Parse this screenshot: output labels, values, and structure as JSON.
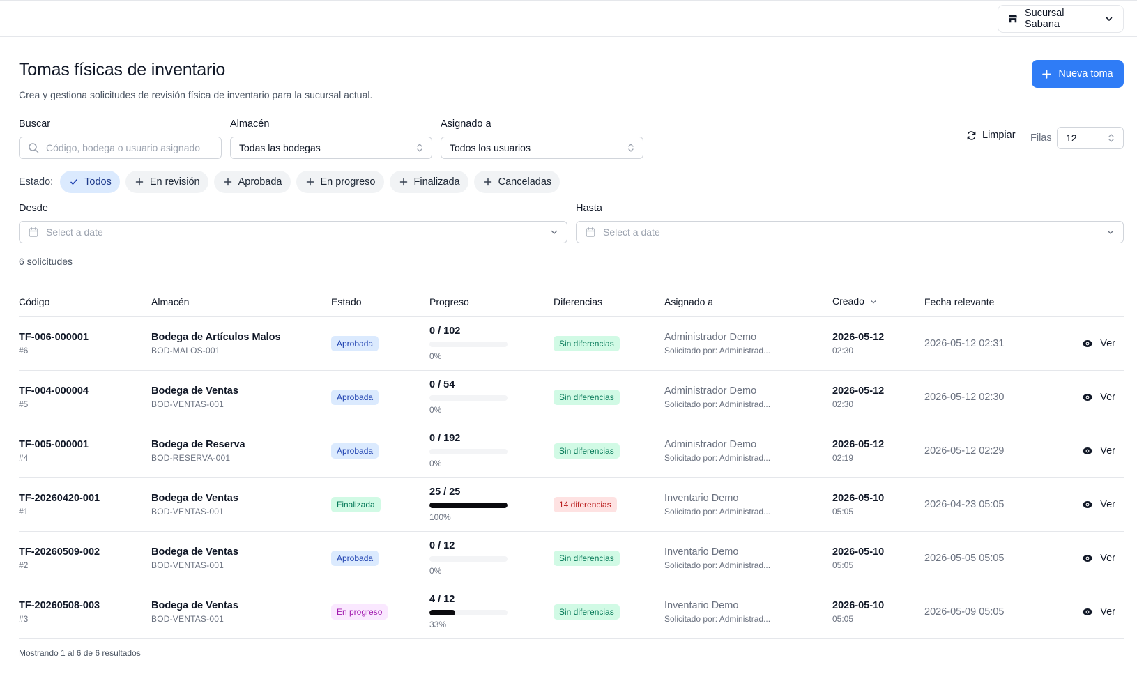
{
  "header": {
    "branch_label": "Sucursal Sabana",
    "branch_icon": "store-icon"
  },
  "page": {
    "title": "Tomas físicas de inventario",
    "subtitle": "Crea y gestiona solicitudes de revisión física de inventario para la sucursal actual.",
    "new_button_label": "Nueva toma"
  },
  "filters": {
    "search": {
      "label": "Buscar",
      "placeholder": "Código, bodega o usuario asignado",
      "value": ""
    },
    "warehouse": {
      "label": "Almacén",
      "value": "Todas las bodegas"
    },
    "assigned": {
      "label": "Asignado a",
      "value": "Todos los usuarios"
    },
    "clear_label": "Limpiar",
    "rows_label": "Filas",
    "rows_value": "12",
    "estado_label": "Estado:",
    "estado_chips": [
      {
        "label": "Todos",
        "active": true
      },
      {
        "label": "En revisión",
        "active": false
      },
      {
        "label": "Aprobada",
        "active": false
      },
      {
        "label": "En progreso",
        "active": false
      },
      {
        "label": "Finalizada",
        "active": false
      },
      {
        "label": "Canceladas",
        "active": false
      }
    ],
    "from": {
      "label": "Desde",
      "placeholder": "Select a date"
    },
    "to": {
      "label": "Hasta",
      "placeholder": "Select a date"
    }
  },
  "results_count": "6 solicitudes",
  "table": {
    "columns": [
      "Código",
      "Almacén",
      "Estado",
      "Progreso",
      "Diferencias",
      "Asignado a",
      "Creado",
      "Fecha relevante"
    ],
    "view_label": "Ver",
    "rows": [
      {
        "code": "TF-006-000001",
        "num": "#6",
        "warehouse": "Bodega de Artículos Malos",
        "wcode": "BOD-MALOS-001",
        "status": "Aprobada",
        "status_kind": "aprobada",
        "progress_text": "0 / 102",
        "progress_fraction": 0,
        "progress_pct": "0%",
        "diff": "Sin diferencias",
        "diff_kind": "sin",
        "assignee": "Administrador Demo",
        "requested_by": "Solicitado por: Administrad...",
        "created_date": "2026-05-12",
        "created_time": "02:30",
        "relevant": "2026-05-12 02:31"
      },
      {
        "code": "TF-004-000004",
        "num": "#5",
        "warehouse": "Bodega de Ventas",
        "wcode": "BOD-VENTAS-001",
        "status": "Aprobada",
        "status_kind": "aprobada",
        "progress_text": "0 / 54",
        "progress_fraction": 0,
        "progress_pct": "0%",
        "diff": "Sin diferencias",
        "diff_kind": "sin",
        "assignee": "Administrador Demo",
        "requested_by": "Solicitado por: Administrad...",
        "created_date": "2026-05-12",
        "created_time": "02:30",
        "relevant": "2026-05-12 02:30"
      },
      {
        "code": "TF-005-000001",
        "num": "#4",
        "warehouse": "Bodega de Reserva",
        "wcode": "BOD-RESERVA-001",
        "status": "Aprobada",
        "status_kind": "aprobada",
        "progress_text": "0 / 192",
        "progress_fraction": 0,
        "progress_pct": "0%",
        "diff": "Sin diferencias",
        "diff_kind": "sin",
        "assignee": "Administrador Demo",
        "requested_by": "Solicitado por: Administrad...",
        "created_date": "2026-05-12",
        "created_time": "02:19",
        "relevant": "2026-05-12 02:29"
      },
      {
        "code": "TF-20260420-001",
        "num": "#1",
        "warehouse": "Bodega de Ventas",
        "wcode": "BOD-VENTAS-001",
        "status": "Finalizada",
        "status_kind": "finalizada",
        "progress_text": "25 / 25",
        "progress_fraction": 1,
        "progress_pct": "100%",
        "diff": "14 diferencias",
        "diff_kind": "dif",
        "assignee": "Inventario Demo",
        "requested_by": "Solicitado por: Administrad...",
        "created_date": "2026-05-10",
        "created_time": "05:05",
        "relevant": "2026-04-23 05:05"
      },
      {
        "code": "TF-20260509-002",
        "num": "#2",
        "warehouse": "Bodega de Ventas",
        "wcode": "BOD-VENTAS-001",
        "status": "Aprobada",
        "status_kind": "aprobada",
        "progress_text": "0 / 12",
        "progress_fraction": 0,
        "progress_pct": "0%",
        "diff": "Sin diferencias",
        "diff_kind": "sin",
        "assignee": "Inventario Demo",
        "requested_by": "Solicitado por: Administrad...",
        "created_date": "2026-05-10",
        "created_time": "05:05",
        "relevant": "2026-05-05 05:05"
      },
      {
        "code": "TF-20260508-003",
        "num": "#3",
        "warehouse": "Bodega de Ventas",
        "wcode": "BOD-VENTAS-001",
        "status": "En progreso",
        "status_kind": "progreso",
        "progress_text": "4 / 12",
        "progress_fraction": 0.33,
        "progress_pct": "33%",
        "diff": "Sin diferencias",
        "diff_kind": "sin",
        "assignee": "Inventario Demo",
        "requested_by": "Solicitado por: Administrad...",
        "created_date": "2026-05-10",
        "created_time": "05:05",
        "relevant": "2026-05-09 05:05"
      }
    ]
  },
  "footer": {
    "showing": "Mostrando 1 al 6 de 6 resultados"
  }
}
